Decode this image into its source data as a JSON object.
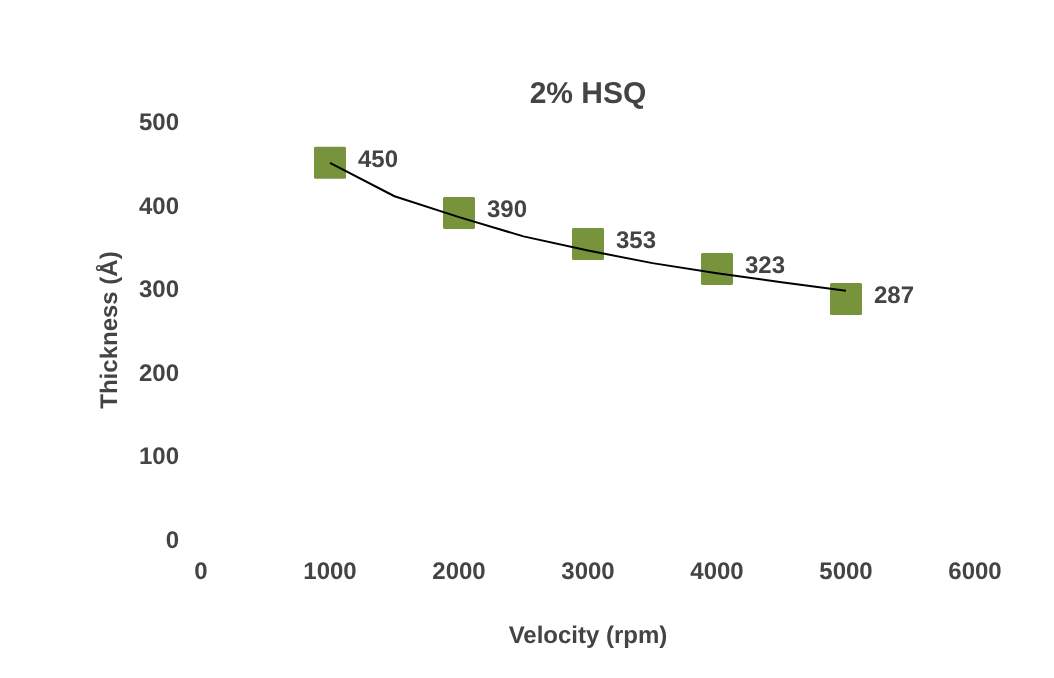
{
  "chart_data": {
    "type": "scatter",
    "title": "2% HSQ",
    "xlabel": "Velocity (rpm)",
    "ylabel": "Thickness (Å)",
    "x": [
      1000,
      2000,
      3000,
      4000,
      5000
    ],
    "series": [
      {
        "color": "#77933c",
        "marker": "square",
        "values": [
          450,
          390,
          353,
          323,
          287
        ],
        "value_labels": [
          "450",
          "390",
          "353",
          "323",
          "287"
        ]
      },
      {
        "type": "line",
        "color": "#000000",
        "x": [
          1000,
          1500,
          2000,
          2500,
          3000,
          3500,
          4000,
          4500,
          5000
        ],
        "values": [
          450,
          410,
          385,
          362,
          345,
          330,
          318,
          307,
          297
        ]
      }
    ],
    "grid": false,
    "xlim": [
      0,
      6000
    ],
    "xticks": [
      0,
      1000,
      2000,
      3000,
      4000,
      5000,
      6000
    ],
    "ylim": [
      0,
      500
    ],
    "yticks": [
      0,
      100,
      200,
      300,
      400,
      500
    ]
  }
}
